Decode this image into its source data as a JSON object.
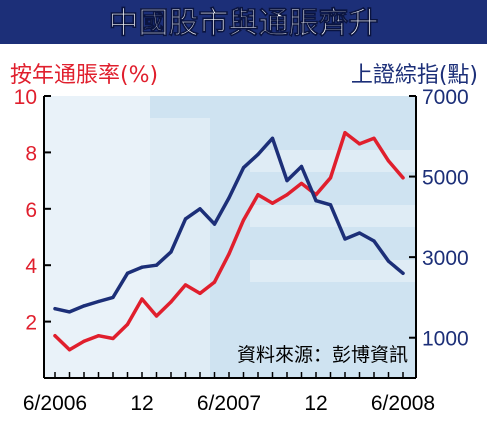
{
  "chart_data": {
    "type": "line",
    "title": "中國股市與通脹齊升",
    "ylabel_left": "按年通脹率(%)",
    "ylabel_right": "上證綜指(點)",
    "source": "資料來源：彭博資訊",
    "x_tick_labels": [
      "6/2006",
      "12",
      "6/2007",
      "12",
      "6/2008"
    ],
    "ylim_left": [
      0,
      10
    ],
    "ylim_right": [
      0,
      7000
    ],
    "yticks_left": [
      "2",
      "4",
      "6",
      "8",
      "10"
    ],
    "yticks_right": [
      "1000",
      "3000",
      "5000",
      "7000"
    ],
    "x": [
      "2006-06",
      "2006-07",
      "2006-08",
      "2006-09",
      "2006-10",
      "2006-11",
      "2006-12",
      "2007-01",
      "2007-02",
      "2007-03",
      "2007-04",
      "2007-05",
      "2007-06",
      "2007-07",
      "2007-08",
      "2007-09",
      "2007-10",
      "2007-11",
      "2007-12",
      "2008-01",
      "2008-02",
      "2008-03",
      "2008-04",
      "2008-05",
      "2008-06"
    ],
    "series": [
      {
        "name": "按年通脹率",
        "axis": "left",
        "color": "#e01f2d",
        "values": [
          1.5,
          1.0,
          1.3,
          1.5,
          1.4,
          1.9,
          2.8,
          2.2,
          2.7,
          3.3,
          3.0,
          3.4,
          4.4,
          5.6,
          6.5,
          6.2,
          6.5,
          6.9,
          6.5,
          7.1,
          8.7,
          8.3,
          8.5,
          7.7,
          7.1
        ]
      },
      {
        "name": "上證綜指",
        "axis": "right",
        "color": "#1c2f78",
        "values": [
          1720,
          1640,
          1790,
          1900,
          2000,
          2600,
          2750,
          2800,
          3130,
          3950,
          4200,
          3820,
          4470,
          5220,
          5550,
          5950,
          4900,
          5250,
          4400,
          4300,
          3450,
          3600,
          3400,
          2900,
          2600
        ]
      }
    ]
  },
  "colors": {
    "title_bg": "#1c2f78",
    "plot_bg": "#cfe3f1",
    "shade": "#ffffff",
    "axis": "#000000"
  }
}
